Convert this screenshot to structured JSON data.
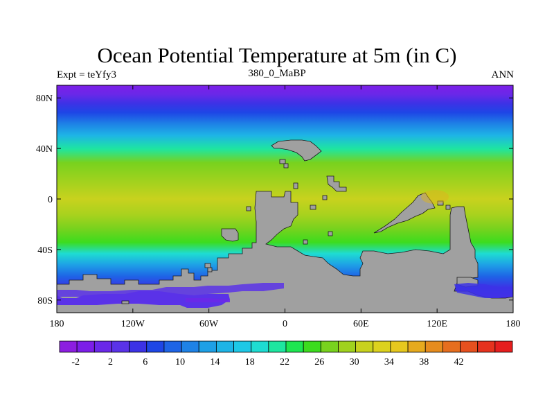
{
  "title": "Ocean Potential Temperature at 5m (in C)",
  "subtitle_left": "Expt = teYfy3",
  "subtitle_center": "380_0_MaBP",
  "subtitle_right": "ANN",
  "x_ticks": [
    "180",
    "120W",
    "60W",
    "0",
    "60E",
    "120E",
    "180"
  ],
  "y_ticks": [
    "80N",
    "40N",
    "0",
    "40S",
    "80S"
  ],
  "colorbar_labels": [
    "-2",
    "2",
    "6",
    "10",
    "14",
    "18",
    "22",
    "26",
    "30",
    "34",
    "38",
    "42"
  ],
  "colorbar_colors": [
    "#8c1ee0",
    "#7c1ee8",
    "#6a28e8",
    "#5a32e8",
    "#3c32e6",
    "#1e46e6",
    "#1e64e6",
    "#1e82e6",
    "#1ea0e6",
    "#1eb4e6",
    "#1ec8e6",
    "#1edcd2",
    "#1ee6a0",
    "#1ee650",
    "#3cdc1e",
    "#78d21e",
    "#a0d21e",
    "#c8d21e",
    "#dcd21e",
    "#e6c81e",
    "#e6aa1e",
    "#e68c1e",
    "#e66e1e",
    "#e6501e",
    "#e6321e",
    "#e61e1e"
  ],
  "chart_data": {
    "type": "heatmap",
    "title": "Ocean Potential Temperature at 5m (in C)",
    "experiment": "teYfy3",
    "period": "380_0_MaBP",
    "season": "ANN",
    "x_range": [
      -180,
      180
    ],
    "y_range": [
      -90,
      90
    ],
    "x_ticks": [
      -180,
      -120,
      -60,
      0,
      60,
      120,
      180
    ],
    "y_ticks": [
      80,
      40,
      0,
      -40,
      -80
    ],
    "zonal_mean_temperature": [
      {
        "lat": 90,
        "value": -2
      },
      {
        "lat": 80,
        "value": -1
      },
      {
        "lat": 70,
        "value": 4
      },
      {
        "lat": 60,
        "value": 12
      },
      {
        "lat": 50,
        "value": 18
      },
      {
        "lat": 40,
        "value": 22
      },
      {
        "lat": 30,
        "value": 26
      },
      {
        "lat": 20,
        "value": 28
      },
      {
        "lat": 10,
        "value": 29
      },
      {
        "lat": 0,
        "value": 29
      },
      {
        "lat": -10,
        "value": 28
      },
      {
        "lat": -20,
        "value": 26
      },
      {
        "lat": -30,
        "value": 22
      },
      {
        "lat": -40,
        "value": 17
      },
      {
        "lat": -50,
        "value": 11
      },
      {
        "lat": -60,
        "value": 4
      },
      {
        "lat": -70,
        "value": -1
      },
      {
        "lat": -80,
        "value": -2
      },
      {
        "lat": -90,
        "value": -2
      }
    ],
    "colorbar_levels": [
      -2,
      2,
      6,
      10,
      14,
      18,
      22,
      26,
      30,
      34,
      38,
      42
    ],
    "land_color": "#a0a0a0"
  }
}
